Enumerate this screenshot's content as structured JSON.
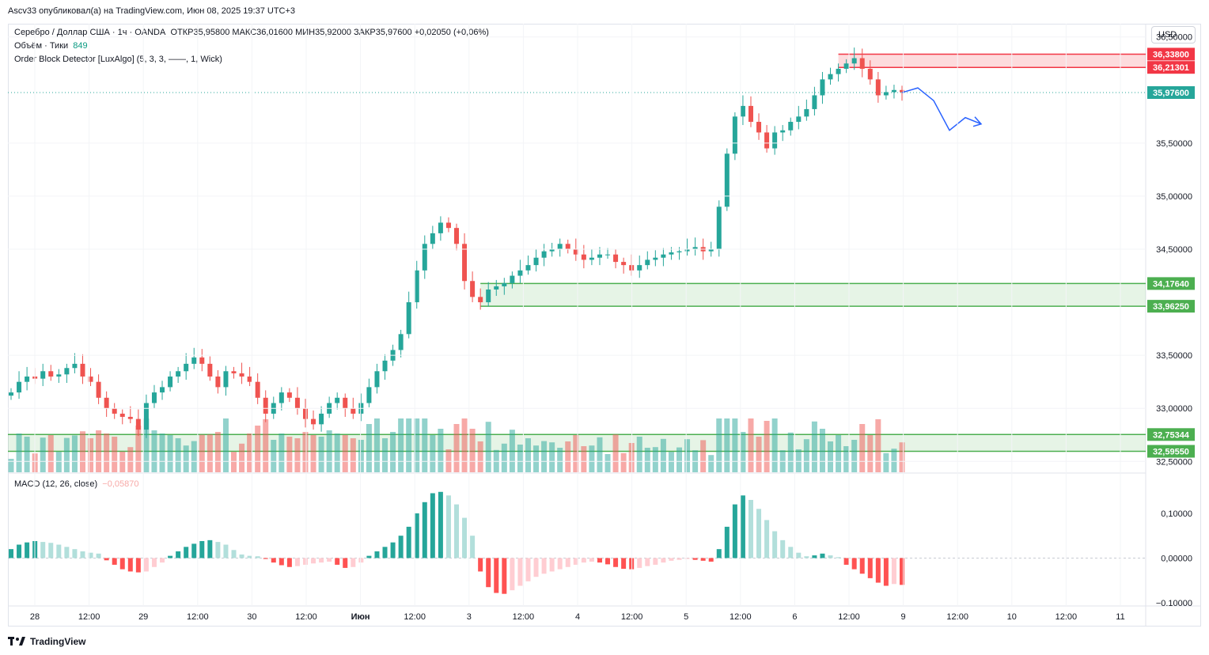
{
  "header": {
    "published": "Ascv33 опубликовал(а) на TradingView.com, Июн 08, 2025 19:37 UTC+3"
  },
  "legend": {
    "symbol": "Серебро / Доллар США · 1ч · OANDA",
    "ohlc": "ОТКР35,95800 МАКС36,01600 МИН35,92000 ЗАКР35,97600 +0,02050 (+0,06%)",
    "volume_label": "Объём · Тики",
    "volume_value": "849",
    "indicator": "Order Block Detector [LuxAlgo] (5, 3, 3, ——, 1, Wick)",
    "macd_label": "MACD (12, 26, close)",
    "macd_value": "−0,05870"
  },
  "toolbar": {
    "currency": "USD"
  },
  "footer": {
    "brand": "TradingView"
  },
  "colors": {
    "up": "#26a69a",
    "down": "#ef5350",
    "zone_green": "#4caf50",
    "zone_red": "#f23645",
    "projection": "#2962ff"
  },
  "chart_data": [
    {
      "type": "candlestick",
      "title": "Серебро / Доллар США · 1ч · OANDA",
      "y_ticks": [
        "36,50000",
        "35,50000",
        "35,00000",
        "34,50000",
        "33,50000",
        "33,00000",
        "32,50000"
      ],
      "ylim": [
        32.45,
        36.55
      ],
      "x_ticks": [
        "28",
        "12:00",
        "29",
        "12:00",
        "30",
        "12:00",
        "Июн",
        "12:00",
        "3",
        "12:00",
        "4",
        "12:00",
        "5",
        "12:00",
        "6",
        "12:00",
        "9",
        "12:00",
        "10",
        "12:00",
        "11"
      ],
      "last_price": 35.976,
      "last_price_label": "35,97600",
      "close_path": [
        33.15,
        33.25,
        33.3,
        33.28,
        33.35,
        33.3,
        33.32,
        33.38,
        33.42,
        33.3,
        33.25,
        33.1,
        33.0,
        32.95,
        32.92,
        32.9,
        32.8,
        33.05,
        33.15,
        33.2,
        33.3,
        33.35,
        33.42,
        33.48,
        33.42,
        33.3,
        33.2,
        33.35,
        33.33,
        33.3,
        33.25,
        33.1,
        32.95,
        33.05,
        33.15,
        33.1,
        33.0,
        32.9,
        32.85,
        32.95,
        33.05,
        33.1,
        33.0,
        32.95,
        33.05,
        33.2,
        33.35,
        33.45,
        33.55,
        33.7,
        34.0,
        34.3,
        34.55,
        34.65,
        34.75,
        34.7,
        34.55,
        34.2,
        34.05,
        34.0,
        34.12,
        34.15,
        34.18,
        34.25,
        34.3,
        34.35,
        34.42,
        34.48,
        34.5,
        34.55,
        34.5,
        34.45,
        34.4,
        34.42,
        34.45,
        34.45,
        34.38,
        34.35,
        34.3,
        34.35,
        34.4,
        34.42,
        34.45,
        34.47,
        34.48,
        34.5,
        34.52,
        34.48,
        34.5,
        34.9,
        35.4,
        35.75,
        35.85,
        35.7,
        35.6,
        35.45,
        35.6,
        35.62,
        35.7,
        35.75,
        35.82,
        35.95,
        36.1,
        36.15,
        36.2,
        36.25,
        36.3,
        36.2,
        36.1,
        35.95,
        35.98,
        36.0,
        35.98
      ],
      "order_blocks": [
        {
          "type": "bearish",
          "top": 36.338,
          "bottom": 36.21301,
          "top_label": "36,33800",
          "bottom_label": "36,21301"
        },
        {
          "type": "bullish",
          "top": 34.1764,
          "bottom": 33.9625,
          "top_label": "34,17640",
          "bottom_label": "33,96250"
        },
        {
          "type": "bullish",
          "top": 32.75344,
          "bottom": 32.5955,
          "top_label": "32,75344",
          "bottom_label": "32,59550"
        }
      ],
      "projection": [
        [
          0,
          35.976
        ],
        [
          1,
          36.02
        ],
        [
          2,
          35.9
        ],
        [
          3,
          35.62
        ],
        [
          4,
          35.74
        ],
        [
          5,
          35.68
        ]
      ]
    },
    {
      "type": "histogram",
      "title": "MACD (12, 26, close)",
      "y_ticks": [
        "0,10000",
        "0,00000",
        "−0.10000"
      ],
      "ylim": [
        -0.1,
        0.16
      ],
      "values": [
        0.02,
        0.03,
        0.035,
        0.038,
        0.036,
        0.034,
        0.03,
        0.025,
        0.02,
        0.015,
        0.012,
        0.01,
        -0.005,
        -0.015,
        -0.025,
        -0.03,
        -0.032,
        -0.03,
        -0.02,
        -0.01,
        0.005,
        0.015,
        0.025,
        0.032,
        0.038,
        0.04,
        0.036,
        0.03,
        0.018,
        0.008,
        0.005,
        0.004,
        -0.002,
        -0.01,
        -0.016,
        -0.02,
        -0.018,
        -0.015,
        -0.012,
        -0.01,
        -0.008,
        -0.015,
        -0.022,
        -0.02,
        -0.01,
        0.005,
        0.015,
        0.025,
        0.035,
        0.05,
        0.07,
        0.1,
        0.125,
        0.145,
        0.148,
        0.14,
        0.12,
        0.09,
        0.05,
        -0.03,
        -0.065,
        -0.078,
        -0.08,
        -0.072,
        -0.062,
        -0.052,
        -0.042,
        -0.035,
        -0.03,
        -0.025,
        -0.02,
        -0.015,
        -0.01,
        -0.008,
        -0.01,
        -0.014,
        -0.02,
        -0.024,
        -0.025,
        -0.022,
        -0.018,
        -0.015,
        -0.01,
        -0.006,
        -0.004,
        -0.002,
        -0.004,
        -0.006,
        -0.008,
        0.02,
        0.07,
        0.12,
        0.14,
        0.13,
        0.11,
        0.085,
        0.06,
        0.04,
        0.025,
        0.012,
        0.004,
        0.006,
        0.01,
        0.006,
        0.002,
        -0.015,
        -0.025,
        -0.035,
        -0.045,
        -0.055,
        -0.062,
        -0.058,
        -0.06
      ]
    }
  ]
}
